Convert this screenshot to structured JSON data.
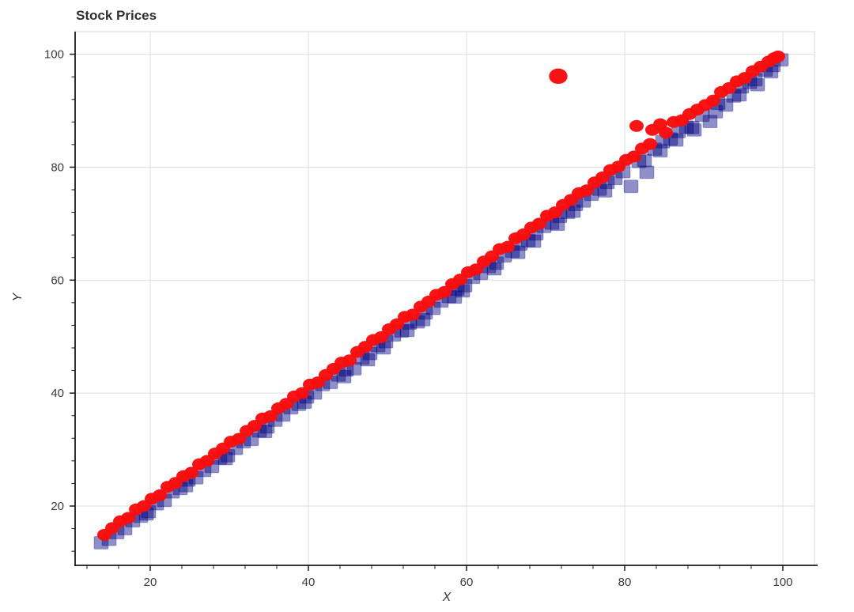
{
  "colors": {
    "circle_series": "#f80c0c",
    "square_series": "#000080",
    "grid": "#dedede",
    "plot_border": "#d9d9d9",
    "axis": "#1a1a1a",
    "tick_label": "#3b3b3b",
    "title": "#303030",
    "background": "#ffffff"
  },
  "chart_data": {
    "type": "scatter",
    "title": "Stock Prices",
    "xlabel": "X",
    "ylabel": "Y",
    "xlim": [
      10.5,
      104
    ],
    "ylim": [
      9.5,
      104
    ],
    "grid": true,
    "legend": "none",
    "x_ticks": [
      20,
      40,
      60,
      80,
      100
    ],
    "y_ticks": [
      20,
      40,
      60,
      80,
      100
    ],
    "x_minor_ticks": [
      12,
      16,
      24,
      28,
      32,
      36,
      44,
      48,
      52,
      56,
      64,
      68,
      72,
      76,
      84,
      88,
      92,
      96
    ],
    "y_minor_ticks": [
      12,
      16,
      24,
      28,
      32,
      36,
      44,
      48,
      52,
      56,
      64,
      68,
      72,
      76,
      84,
      88,
      92,
      96
    ],
    "series": [
      {
        "label": "blue squares (y slightly below x, scattered low outliers)",
        "marker": "square",
        "color": "#000080",
        "fill_opacity": 0.44,
        "points": [
          [
            13.8,
            13.5
          ],
          [
            14.8,
            14.1
          ],
          [
            15.8,
            15.3
          ],
          [
            16.8,
            16.0
          ],
          [
            17.8,
            17.4
          ],
          [
            18.8,
            18.2
          ],
          [
            19.8,
            19.0
          ],
          [
            20.8,
            20.4
          ],
          [
            21.8,
            21.0
          ],
          [
            22.8,
            22.5
          ],
          [
            23.8,
            23.1
          ],
          [
            24.8,
            24.6
          ],
          [
            25.8,
            25.0
          ],
          [
            26.8,
            26.3
          ],
          [
            27.8,
            27.0
          ],
          [
            28.8,
            28.5
          ],
          [
            29.8,
            28.9
          ],
          [
            30.8,
            30.2
          ],
          [
            31.8,
            31.4
          ],
          [
            32.8,
            31.8
          ],
          [
            33.8,
            33.3
          ],
          [
            34.8,
            34.0
          ],
          [
            35.8,
            35.2
          ],
          [
            36.8,
            36.1
          ],
          [
            37.8,
            37.4
          ],
          [
            38.8,
            38.0
          ],
          [
            39.8,
            39.3
          ],
          [
            40.8,
            40.0
          ],
          [
            41.8,
            41.5
          ],
          [
            42.8,
            41.9
          ],
          [
            43.8,
            43.2
          ],
          [
            44.8,
            44.1
          ],
          [
            45.8,
            44.3
          ],
          [
            46.8,
            46.2
          ],
          [
            47.8,
            47.0
          ],
          [
            48.8,
            48.4
          ],
          [
            49.8,
            49.1
          ],
          [
            50.8,
            50.3
          ],
          [
            51.8,
            51.0
          ],
          [
            52.8,
            52.4
          ],
          [
            53.8,
            52.6
          ],
          [
            54.8,
            54.2
          ],
          [
            55.8,
            55.0
          ],
          [
            56.8,
            56.3
          ],
          [
            57.8,
            57.1
          ],
          [
            58.8,
            58.4
          ],
          [
            59.8,
            59.0
          ],
          [
            60.8,
            60.5
          ],
          [
            61.8,
            61.2
          ],
          [
            62.8,
            62.4
          ],
          [
            63.8,
            63.0
          ],
          [
            64.8,
            64.3
          ],
          [
            65.8,
            65.1
          ],
          [
            66.8,
            66.4
          ],
          [
            67.8,
            67.0
          ],
          [
            68.8,
            68.2
          ],
          [
            69.8,
            69.5
          ],
          [
            70.8,
            70.1
          ],
          [
            71.8,
            71.3
          ],
          [
            72.8,
            72.0
          ],
          [
            73.8,
            73.4
          ],
          [
            74.8,
            74.0
          ],
          [
            75.8,
            75.2
          ],
          [
            76.8,
            76.1
          ],
          [
            77.8,
            77.3
          ],
          [
            78.8,
            78.0
          ],
          [
            79.8,
            79.2
          ],
          [
            80.8,
            76.6
          ],
          [
            81.8,
            81.0
          ],
          [
            82.8,
            79.1
          ],
          [
            83.8,
            83.2
          ],
          [
            84.8,
            84.5
          ],
          [
            85.8,
            85.0
          ],
          [
            86.8,
            86.3
          ],
          [
            87.8,
            87.1
          ],
          [
            88.8,
            86.6
          ],
          [
            89.8,
            89.2
          ],
          [
            90.8,
            88.1
          ],
          [
            91.8,
            91.3
          ],
          [
            92.8,
            91.0
          ],
          [
            93.8,
            92.6
          ],
          [
            94.8,
            94.2
          ],
          [
            95.8,
            95.0
          ],
          [
            96.8,
            94.6
          ],
          [
            97.8,
            97.2
          ],
          [
            98.8,
            98.0
          ],
          [
            99.8,
            99.0
          ],
          [
            19.5,
            18.6
          ],
          [
            24.5,
            23.6
          ],
          [
            29.5,
            28.4
          ],
          [
            34.5,
            33.2
          ],
          [
            39.5,
            38.4
          ],
          [
            44.5,
            42.9
          ],
          [
            47.5,
            45.9
          ],
          [
            49.5,
            48.0
          ],
          [
            52.5,
            51.1
          ],
          [
            54.5,
            53.0
          ],
          [
            58.5,
            57.0
          ],
          [
            59.5,
            58.1
          ],
          [
            63.5,
            62.0
          ],
          [
            66.5,
            64.9
          ],
          [
            68.5,
            66.9
          ],
          [
            71.5,
            69.9
          ],
          [
            73.5,
            72.2
          ],
          [
            77.5,
            75.8
          ],
          [
            82.5,
            81.2
          ],
          [
            84.5,
            82.9
          ],
          [
            86.5,
            84.8
          ],
          [
            88.5,
            87.0
          ],
          [
            91.5,
            89.8
          ],
          [
            94.5,
            92.8
          ],
          [
            96.5,
            95.5
          ],
          [
            98.5,
            96.9
          ]
        ]
      },
      {
        "label": "red circles (y slightly above x, one high outlier)",
        "marker": "circle",
        "color": "#f80c0c",
        "fill_opacity": 0.97,
        "points": [
          [
            14.2,
            14.9
          ],
          [
            15.2,
            16.1
          ],
          [
            16.2,
            17.3
          ],
          [
            17.2,
            17.9
          ],
          [
            18.2,
            19.4
          ],
          [
            19.2,
            20.0
          ],
          [
            20.2,
            21.3
          ],
          [
            21.2,
            21.9
          ],
          [
            22.2,
            23.4
          ],
          [
            23.2,
            24.1
          ],
          [
            24.2,
            25.3
          ],
          [
            25.2,
            25.9
          ],
          [
            26.2,
            27.4
          ],
          [
            27.2,
            28.0
          ],
          [
            28.2,
            29.3
          ],
          [
            29.2,
            30.2
          ],
          [
            30.2,
            31.4
          ],
          [
            31.2,
            31.9
          ],
          [
            32.2,
            33.3
          ],
          [
            33.2,
            34.2
          ],
          [
            34.2,
            35.5
          ],
          [
            35.2,
            35.9
          ],
          [
            36.2,
            37.3
          ],
          [
            37.2,
            38.1
          ],
          [
            38.2,
            39.4
          ],
          [
            39.2,
            40.0
          ],
          [
            40.2,
            41.5
          ],
          [
            41.2,
            41.9
          ],
          [
            42.2,
            43.2
          ],
          [
            43.2,
            44.3
          ],
          [
            44.2,
            45.4
          ],
          [
            45.2,
            45.8
          ],
          [
            46.2,
            47.3
          ],
          [
            47.2,
            48.2
          ],
          [
            48.2,
            49.4
          ],
          [
            49.2,
            49.9
          ],
          [
            50.2,
            51.3
          ],
          [
            51.2,
            52.2
          ],
          [
            52.2,
            53.5
          ],
          [
            53.2,
            53.9
          ],
          [
            54.2,
            55.3
          ],
          [
            55.2,
            56.2
          ],
          [
            56.2,
            57.4
          ],
          [
            57.2,
            57.9
          ],
          [
            58.2,
            59.3
          ],
          [
            59.2,
            60.1
          ],
          [
            60.2,
            61.4
          ],
          [
            61.2,
            61.9
          ],
          [
            62.2,
            63.3
          ],
          [
            63.2,
            64.2
          ],
          [
            64.2,
            65.5
          ],
          [
            65.2,
            65.9
          ],
          [
            66.2,
            67.4
          ],
          [
            67.2,
            68.1
          ],
          [
            68.2,
            69.3
          ],
          [
            69.2,
            70.0
          ],
          [
            70.2,
            71.4
          ],
          [
            71.2,
            72.0
          ],
          [
            72.2,
            73.3
          ],
          [
            73.2,
            74.2
          ],
          [
            74.2,
            75.4
          ],
          [
            75.2,
            75.9
          ],
          [
            76.2,
            77.3
          ],
          [
            77.2,
            78.2
          ],
          [
            78.2,
            79.5
          ],
          [
            79.2,
            80.1
          ],
          [
            80.2,
            81.3
          ],
          [
            81.2,
            81.9
          ],
          [
            81.5,
            87.3
          ],
          [
            82.2,
            83.3
          ],
          [
            83.2,
            84.1
          ],
          [
            83.5,
            86.6
          ],
          [
            84.5,
            87.6
          ],
          [
            85.2,
            86.1
          ],
          [
            86.2,
            88.0
          ],
          [
            87.2,
            88.3
          ],
          [
            88.2,
            89.4
          ],
          [
            89.2,
            90.2
          ],
          [
            90.2,
            91.0
          ],
          [
            91.2,
            91.8
          ],
          [
            92.2,
            93.3
          ],
          [
            93.2,
            94.0
          ],
          [
            94.2,
            95.2
          ],
          [
            95.2,
            95.8
          ],
          [
            96.2,
            97.0
          ],
          [
            97.2,
            97.8
          ],
          [
            98.2,
            98.7
          ],
          [
            98.9,
            99.3
          ],
          [
            99.4,
            99.6
          ],
          [
            71.6,
            96.1,
            1.3
          ]
        ]
      }
    ]
  }
}
